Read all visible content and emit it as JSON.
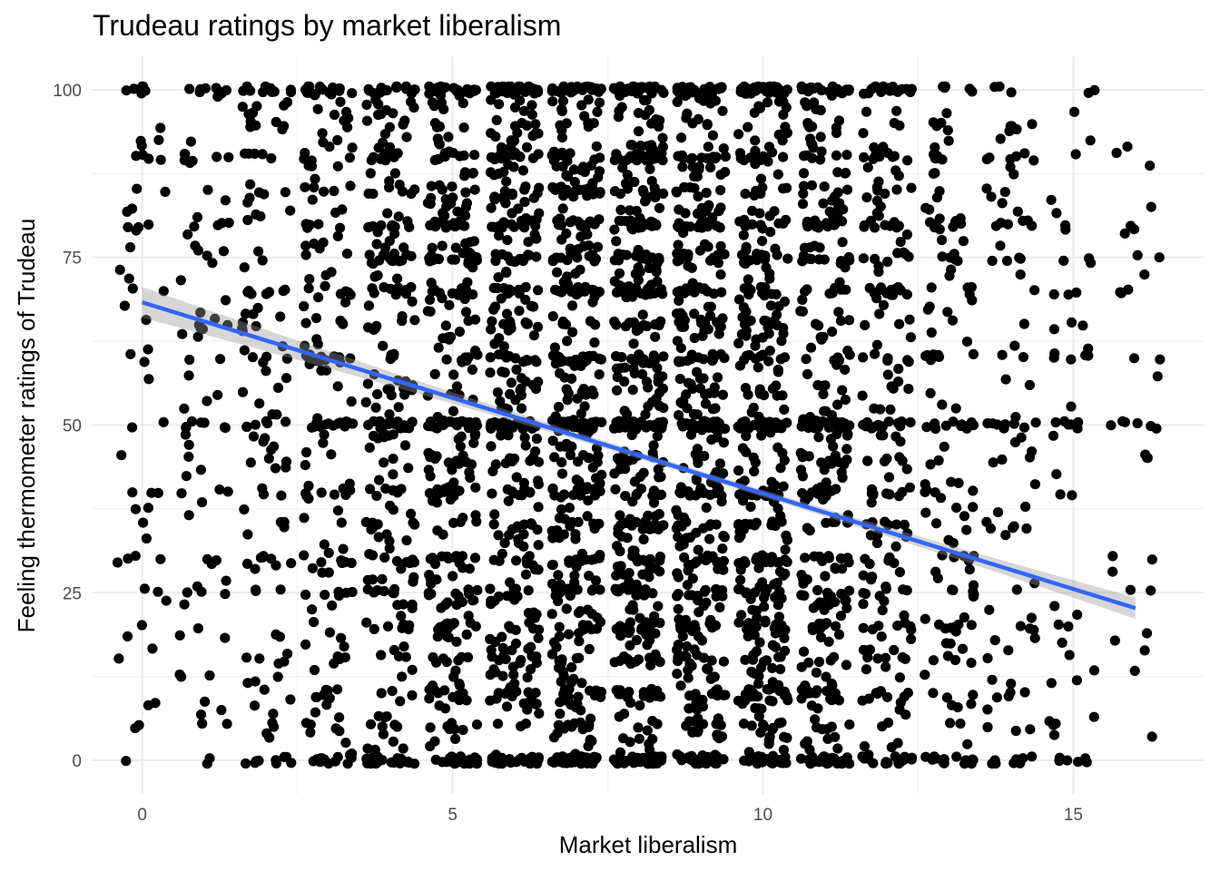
{
  "chart_data": {
    "type": "scatter",
    "title": "Trudeau ratings by market liberalism",
    "xlabel": "Market liberalism",
    "ylabel": "Feeling thermometer ratings of Trudeau",
    "xlim": [
      -0.8,
      17.1
    ],
    "ylim": [
      -5,
      105
    ],
    "x_ticks": [
      0,
      5,
      10,
      15
    ],
    "y_ticks": [
      0,
      25,
      50,
      75,
      100
    ],
    "x_tick_labels": [
      "0",
      "5",
      "10",
      "15"
    ],
    "y_tick_labels": [
      "0",
      "25",
      "50",
      "75",
      "100"
    ],
    "grid": true,
    "theme": "minimal",
    "point_color": "#000000",
    "jitter_width": 0.4,
    "x_levels": [
      0,
      1,
      2,
      3,
      4,
      5,
      6,
      7,
      8,
      9,
      10,
      11,
      12,
      13,
      14,
      15,
      16
    ],
    "points_per_level": [
      60,
      85,
      130,
      190,
      260,
      330,
      400,
      440,
      470,
      460,
      410,
      320,
      230,
      150,
      95,
      55,
      35
    ],
    "y_value_weights": {
      "0": 2.2,
      "100": 2.0,
      "50": 2.4,
      "75": 1.2,
      "25": 1.0,
      "80": 1.0,
      "70": 1.0,
      "60": 1.0,
      "40": 1.0,
      "30": 0.8,
      "90": 0.9,
      "85": 0.6,
      "65": 0.6,
      "20": 0.7,
      "10": 0.7,
      "5": 0.5,
      "95": 0.4,
      "15": 0.5,
      "35": 0.5,
      "45": 0.4,
      "55": 0.4
    },
    "fit": {
      "method": "lm",
      "color": "#3366ff",
      "ribbon_color": "#999999",
      "x_range": [
        0,
        16
      ],
      "intercept": 68.3,
      "slope": -2.85,
      "se_at_ends": 2.3,
      "se_at_center": 0.5,
      "x_center": 9.0
    }
  }
}
